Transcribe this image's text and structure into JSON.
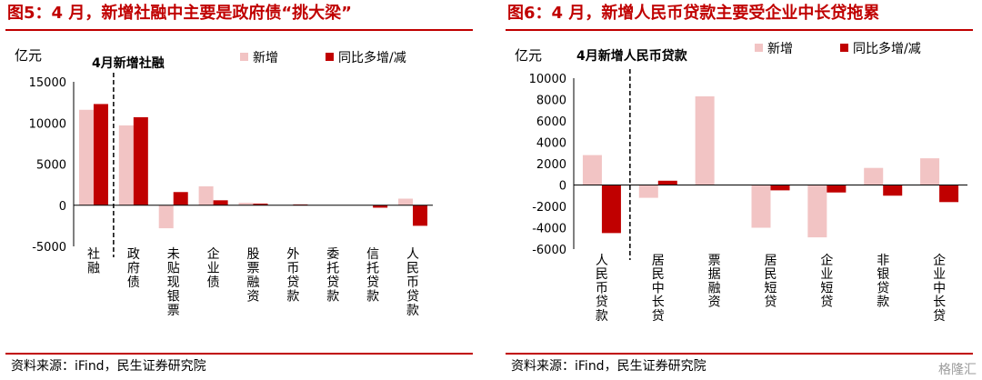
{
  "chart_data": [
    {
      "type": "bar",
      "figure_title": "图5：4 月，新增社融中主要是政府债“挑大梁”",
      "inner_title": "4月新增社融",
      "unit": "亿元",
      "ylim": [
        -5000,
        15000
      ],
      "yticks": [
        15000,
        10000,
        5000,
        0,
        -5000
      ],
      "categories": [
        "社融",
        "政府债",
        "未贴现银票",
        "企业债",
        "股票融资",
        "外币贷款",
        "委托贷款",
        "信托贷款",
        "人民币贷款"
      ],
      "series": [
        {
          "name": "新增",
          "color": "#f2c4c4",
          "values": [
            11600,
            9700,
            -2800,
            2300,
            300,
            0,
            0,
            0,
            800
          ]
        },
        {
          "name": "同比多增/减",
          "color": "#c00000",
          "values": [
            12300,
            10700,
            1600,
            600,
            200,
            100,
            0,
            -300,
            -2500
          ]
        }
      ],
      "legend": "top-right",
      "divider_after_index": 0,
      "source": "资料来源：iFind，民生证券研究院"
    },
    {
      "type": "bar",
      "figure_title": "图6：4 月，新增人民币贷款主要受企业中长贷拖累",
      "inner_title": "4月新增人民币贷款",
      "unit": "亿元",
      "ylim": [
        -6000,
        10000
      ],
      "yticks": [
        10000,
        8000,
        6000,
        4000,
        2000,
        0,
        -2000,
        -4000,
        -6000
      ],
      "categories": [
        "人民币贷款",
        "居民中长贷",
        "票据融资",
        "居民短贷",
        "企业短贷",
        "非银贷款",
        "企业中长贷"
      ],
      "series": [
        {
          "name": "新增",
          "color": "#f2c4c4",
          "values": [
            2800,
            -1200,
            8300,
            -4000,
            -4900,
            1600,
            2500
          ]
        },
        {
          "name": "同比多增/减",
          "color": "#c00000",
          "values": [
            -4500,
            400,
            0,
            -500,
            -700,
            -1000,
            -1600
          ]
        }
      ],
      "legend": "top-right",
      "divider_after_index": 0,
      "source": "资料来源：iFind，民生证券研究院"
    }
  ],
  "watermark": "格隆汇"
}
